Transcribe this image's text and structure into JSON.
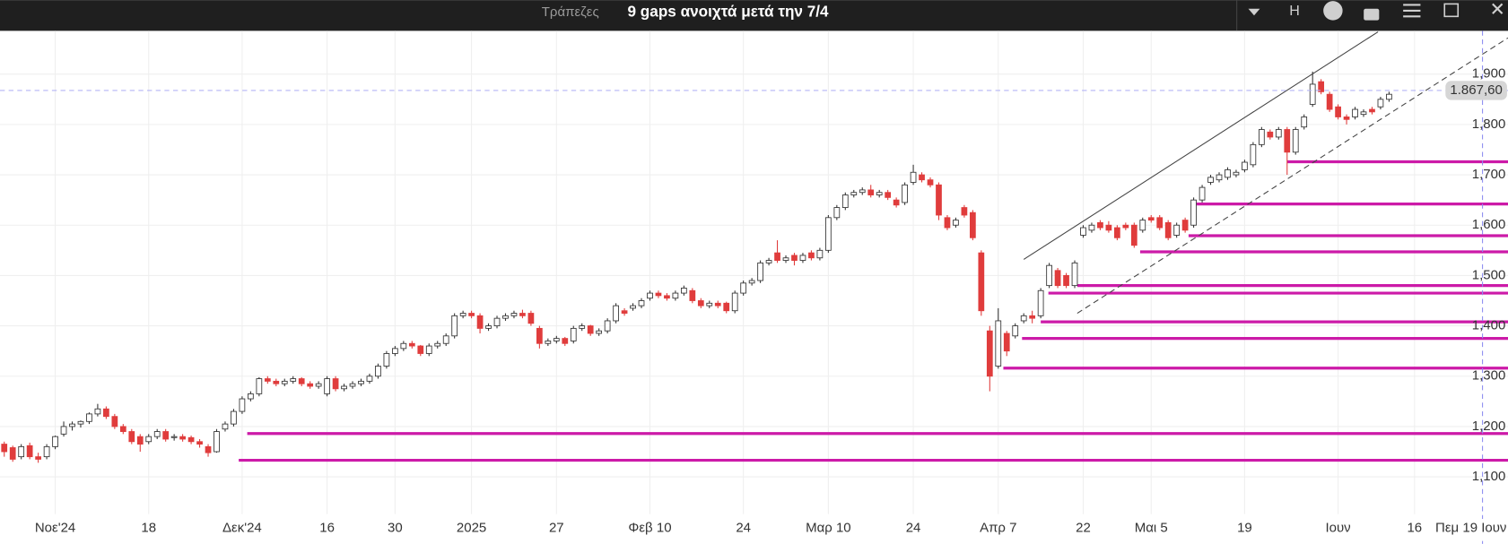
{
  "header": {
    "group": "Τράπεζες",
    "title": "9 gaps ανοιχτά μετά την 7/4",
    "button": "H"
  },
  "chart_data": {
    "type": "candlestick",
    "xlim": [
      -0.5,
      177
    ],
    "ylim": [
      1026,
      1986
    ],
    "yticks": [
      {
        "value": 1100,
        "label": "1,100"
      },
      {
        "value": 1200,
        "label": "1,200"
      },
      {
        "value": 1300,
        "label": "1,300"
      },
      {
        "value": 1400,
        "label": "1,400"
      },
      {
        "value": 1500,
        "label": "1,500"
      },
      {
        "value": 1600,
        "label": "1,600"
      },
      {
        "value": 1700,
        "label": "1,700"
      },
      {
        "value": 1800,
        "label": "1,800"
      },
      {
        "value": 1900,
        "label": "1,900"
      }
    ],
    "xticks": [
      {
        "value": 6,
        "label": "Νοε'24"
      },
      {
        "value": 17,
        "label": "18"
      },
      {
        "value": 28,
        "label": "Δεκ'24"
      },
      {
        "value": 38,
        "label": "16"
      },
      {
        "value": 46,
        "label": "30"
      },
      {
        "value": 55,
        "label": "2025"
      },
      {
        "value": 65,
        "label": "27"
      },
      {
        "value": 76,
        "label": "Φεβ 10"
      },
      {
        "value": 87,
        "label": "24"
      },
      {
        "value": 97,
        "label": "Μαρ 10"
      },
      {
        "value": 107,
        "label": "24"
      },
      {
        "value": 117,
        "label": "Απρ 7"
      },
      {
        "value": 127,
        "label": "22"
      },
      {
        "value": 135,
        "label": "Μαι 5"
      },
      {
        "value": 146,
        "label": "19"
      },
      {
        "value": 157,
        "label": "Ιουν"
      },
      {
        "value": 166,
        "label": "16"
      }
    ],
    "grid": true,
    "up_color": "#ffffff",
    "down_color": "#e03c3c",
    "gap_color": "#cc1aa8",
    "crosshair": {
      "x": {
        "value": 174,
        "label": "Πεμ 19 Ιουν"
      },
      "y": {
        "value": 1867.6,
        "label": "1.867,60"
      }
    },
    "ohlc": [
      [
        1165,
        1170,
        1140,
        1150
      ],
      [
        1158,
        1162,
        1130,
        1135
      ],
      [
        1140,
        1165,
        1135,
        1160
      ],
      [
        1162,
        1168,
        1135,
        1140
      ],
      [
        1140,
        1148,
        1128,
        1135
      ],
      [
        1140,
        1165,
        1135,
        1160
      ],
      [
        1160,
        1182,
        1155,
        1180
      ],
      [
        1185,
        1210,
        1180,
        1200
      ],
      [
        1200,
        1210,
        1192,
        1205
      ],
      [
        1205,
        1212,
        1198,
        1210
      ],
      [
        1210,
        1228,
        1205,
        1225
      ],
      [
        1225,
        1245,
        1220,
        1235
      ],
      [
        1235,
        1240,
        1215,
        1220
      ],
      [
        1220,
        1225,
        1195,
        1200
      ],
      [
        1200,
        1205,
        1185,
        1190
      ],
      [
        1190,
        1195,
        1165,
        1170
      ],
      [
        1180,
        1185,
        1150,
        1165
      ],
      [
        1170,
        1185,
        1165,
        1180
      ],
      [
        1180,
        1195,
        1175,
        1190
      ],
      [
        1190,
        1195,
        1170,
        1175
      ],
      [
        1178,
        1185,
        1172,
        1180
      ],
      [
        1180,
        1185,
        1170,
        1175
      ],
      [
        1178,
        1182,
        1165,
        1170
      ],
      [
        1170,
        1175,
        1158,
        1165
      ],
      [
        1160,
        1165,
        1140,
        1148
      ],
      [
        1150,
        1195,
        1148,
        1190
      ],
      [
        1195,
        1210,
        1190,
        1205
      ],
      [
        1205,
        1235,
        1200,
        1230
      ],
      [
        1230,
        1260,
        1225,
        1255
      ],
      [
        1255,
        1270,
        1250,
        1265
      ],
      [
        1265,
        1298,
        1260,
        1295
      ],
      [
        1295,
        1300,
        1285,
        1290
      ],
      [
        1290,
        1295,
        1280,
        1285
      ],
      [
        1285,
        1295,
        1280,
        1290
      ],
      [
        1290,
        1300,
        1285,
        1295
      ],
      [
        1295,
        1298,
        1280,
        1285
      ],
      [
        1285,
        1290,
        1275,
        1280
      ],
      [
        1280,
        1290,
        1275,
        1285
      ],
      [
        1265,
        1300,
        1260,
        1295
      ],
      [
        1295,
        1300,
        1270,
        1275
      ],
      [
        1275,
        1285,
        1270,
        1280
      ],
      [
        1280,
        1290,
        1275,
        1285
      ],
      [
        1285,
        1295,
        1280,
        1290
      ],
      [
        1290,
        1305,
        1285,
        1300
      ],
      [
        1300,
        1325,
        1295,
        1320
      ],
      [
        1320,
        1350,
        1315,
        1345
      ],
      [
        1345,
        1360,
        1340,
        1355
      ],
      [
        1355,
        1370,
        1350,
        1365
      ],
      [
        1365,
        1370,
        1355,
        1360
      ],
      [
        1360,
        1362,
        1340,
        1345
      ],
      [
        1345,
        1365,
        1340,
        1360
      ],
      [
        1360,
        1370,
        1355,
        1365
      ],
      [
        1365,
        1385,
        1360,
        1380
      ],
      [
        1380,
        1425,
        1375,
        1420
      ],
      [
        1420,
        1430,
        1415,
        1425
      ],
      [
        1425,
        1430,
        1415,
        1420
      ],
      [
        1420,
        1425,
        1385,
        1395
      ],
      [
        1395,
        1405,
        1390,
        1400
      ],
      [
        1400,
        1420,
        1395,
        1415
      ],
      [
        1415,
        1425,
        1410,
        1420
      ],
      [
        1420,
        1430,
        1415,
        1425
      ],
      [
        1425,
        1432,
        1415,
        1420
      ],
      [
        1425,
        1430,
        1400,
        1405
      ],
      [
        1395,
        1400,
        1355,
        1365
      ],
      [
        1365,
        1375,
        1360,
        1370
      ],
      [
        1370,
        1380,
        1365,
        1375
      ],
      [
        1375,
        1378,
        1360,
        1365
      ],
      [
        1370,
        1400,
        1365,
        1395
      ],
      [
        1395,
        1405,
        1390,
        1400
      ],
      [
        1400,
        1402,
        1380,
        1385
      ],
      [
        1385,
        1395,
        1380,
        1390
      ],
      [
        1390,
        1415,
        1385,
        1410
      ],
      [
        1410,
        1445,
        1405,
        1440
      ],
      [
        1430,
        1435,
        1420,
        1425
      ],
      [
        1435,
        1445,
        1430,
        1440
      ],
      [
        1440,
        1455,
        1435,
        1450
      ],
      [
        1455,
        1470,
        1450,
        1465
      ],
      [
        1465,
        1470,
        1455,
        1460
      ],
      [
        1460,
        1465,
        1450,
        1455
      ],
      [
        1455,
        1470,
        1450,
        1465
      ],
      [
        1465,
        1480,
        1460,
        1475
      ],
      [
        1470,
        1475,
        1445,
        1450
      ],
      [
        1450,
        1455,
        1435,
        1440
      ],
      [
        1440,
        1450,
        1435,
        1445
      ],
      [
        1445,
        1450,
        1435,
        1440
      ],
      [
        1445,
        1448,
        1425,
        1430
      ],
      [
        1430,
        1470,
        1425,
        1465
      ],
      [
        1465,
        1490,
        1460,
        1485
      ],
      [
        1485,
        1495,
        1480,
        1490
      ],
      [
        1490,
        1530,
        1485,
        1525
      ],
      [
        1525,
        1535,
        1520,
        1530
      ],
      [
        1545,
        1570,
        1525,
        1530
      ],
      [
        1530,
        1540,
        1525,
        1535
      ],
      [
        1540,
        1545,
        1520,
        1530
      ],
      [
        1530,
        1545,
        1525,
        1540
      ],
      [
        1545,
        1550,
        1530,
        1535
      ],
      [
        1535,
        1555,
        1530,
        1550
      ],
      [
        1550,
        1620,
        1545,
        1615
      ],
      [
        1615,
        1640,
        1610,
        1635
      ],
      [
        1635,
        1665,
        1630,
        1660
      ],
      [
        1660,
        1670,
        1655,
        1665
      ],
      [
        1665,
        1675,
        1660,
        1670
      ],
      [
        1670,
        1680,
        1655,
        1660
      ],
      [
        1660,
        1670,
        1655,
        1665
      ],
      [
        1665,
        1670,
        1650,
        1655
      ],
      [
        1650,
        1655,
        1635,
        1640
      ],
      [
        1645,
        1685,
        1640,
        1680
      ],
      [
        1685,
        1720,
        1680,
        1705
      ],
      [
        1700,
        1705,
        1685,
        1690
      ],
      [
        1690,
        1695,
        1675,
        1680
      ],
      [
        1680,
        1685,
        1610,
        1620
      ],
      [
        1615,
        1620,
        1590,
        1595
      ],
      [
        1600,
        1615,
        1595,
        1610
      ],
      [
        1635,
        1640,
        1615,
        1620
      ],
      [
        1625,
        1630,
        1570,
        1575
      ],
      [
        1545,
        1550,
        1420,
        1430
      ],
      [
        1390,
        1400,
        1270,
        1300
      ],
      [
        1320,
        1435,
        1315,
        1410
      ],
      [
        1385,
        1390,
        1340,
        1350
      ],
      [
        1380,
        1405,
        1375,
        1400
      ],
      [
        1410,
        1425,
        1405,
        1420
      ],
      [
        1420,
        1430,
        1405,
        1415
      ],
      [
        1420,
        1475,
        1415,
        1470
      ],
      [
        1480,
        1525,
        1475,
        1520
      ],
      [
        1510,
        1515,
        1475,
        1480
      ],
      [
        1500,
        1505,
        1475,
        1480
      ],
      [
        1480,
        1530,
        1475,
        1525
      ],
      [
        1580,
        1600,
        1575,
        1595
      ],
      [
        1590,
        1605,
        1585,
        1600
      ],
      [
        1605,
        1610,
        1590,
        1595
      ],
      [
        1600,
        1608,
        1585,
        1590
      ],
      [
        1595,
        1600,
        1570,
        1575
      ],
      [
        1600,
        1605,
        1590,
        1595
      ],
      [
        1600,
        1605,
        1555,
        1560
      ],
      [
        1590,
        1615,
        1585,
        1610
      ],
      [
        1615,
        1620,
        1605,
        1610
      ],
      [
        1615,
        1620,
        1590,
        1595
      ],
      [
        1605,
        1610,
        1570,
        1575
      ],
      [
        1580,
        1605,
        1575,
        1600
      ],
      [
        1610,
        1615,
        1585,
        1590
      ],
      [
        1600,
        1655,
        1595,
        1650
      ],
      [
        1650,
        1680,
        1645,
        1675
      ],
      [
        1685,
        1700,
        1680,
        1695
      ],
      [
        1690,
        1705,
        1685,
        1700
      ],
      [
        1695,
        1715,
        1690,
        1710
      ],
      [
        1700,
        1710,
        1695,
        1705
      ],
      [
        1710,
        1730,
        1705,
        1725
      ],
      [
        1720,
        1765,
        1715,
        1760
      ],
      [
        1760,
        1795,
        1755,
        1790
      ],
      [
        1785,
        1790,
        1770,
        1775
      ],
      [
        1775,
        1795,
        1770,
        1790
      ],
      [
        1790,
        1795,
        1700,
        1745
      ],
      [
        1745,
        1795,
        1740,
        1790
      ],
      [
        1795,
        1820,
        1790,
        1815
      ],
      [
        1840,
        1905,
        1835,
        1880
      ],
      [
        1885,
        1890,
        1860,
        1865
      ],
      [
        1860,
        1865,
        1825,
        1830
      ],
      [
        1835,
        1840,
        1810,
        1815
      ],
      [
        1815,
        1820,
        1800,
        1810
      ],
      [
        1815,
        1835,
        1810,
        1830
      ],
      [
        1820,
        1830,
        1815,
        1825
      ],
      [
        1830,
        1835,
        1820,
        1825
      ],
      [
        1835,
        1855,
        1830,
        1850
      ],
      [
        1850,
        1865,
        1845,
        1860
      ]
    ],
    "gaps": [
      {
        "start": 28.6,
        "price": 1186
      },
      {
        "start": 27.6,
        "price": 1133
      },
      {
        "start": 117.6,
        "price": 1316
      },
      {
        "start": 119.8,
        "price": 1375
      },
      {
        "start": 122,
        "price": 1408
      },
      {
        "start": 122.9,
        "price": 1465
      },
      {
        "start": 126.3,
        "price": 1480
      },
      {
        "start": 133.7,
        "price": 1547
      },
      {
        "start": 139.4,
        "price": 1579
      },
      {
        "start": 140.3,
        "price": 1642
      },
      {
        "start": 151,
        "price": 1726
      }
    ],
    "trendlines": [
      {
        "style": "solid",
        "x": [
          120,
          161.7
        ],
        "y": [
          1532,
          1984
        ]
      },
      {
        "style": "dashed",
        "x": [
          126.3,
          177
        ],
        "y": [
          1425,
          1972
        ]
      }
    ]
  }
}
